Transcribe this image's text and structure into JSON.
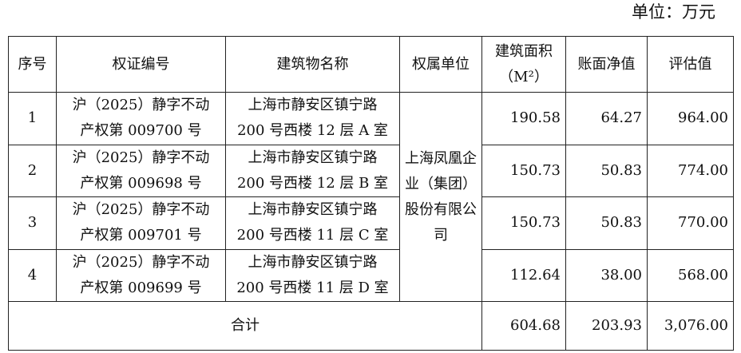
{
  "unit_label": "单位：万元",
  "headers": [
    "序号",
    "权证编号",
    "建筑物名称",
    "权属单位",
    "建筑面积（M²）",
    "账面净值",
    "评估值"
  ],
  "owner": "上海凤凰企业（集团）股份有限公司",
  "rows": [
    {
      "no": "1",
      "cert_l1": "沪（2025）静字不动",
      "cert_l2": "产权第 009700 号",
      "name_l1": "上海市静安区镇宁路",
      "name_l2": "200 号西楼 12 层 A 室",
      "area": "190.58",
      "book": "64.27",
      "value": "964.00"
    },
    {
      "no": "2",
      "cert_l1": "沪（2025）静字不动",
      "cert_l2": "产权第 009698 号",
      "name_l1": "上海市静安区镇宁路",
      "name_l2": "200 号西楼 12 层 B 室",
      "area": "150.73",
      "book": "50.83",
      "value": "774.00"
    },
    {
      "no": "3",
      "cert_l1": "沪（2025）静字不动",
      "cert_l2": "产权第 009701 号",
      "name_l1": "上海市静安区镇宁路",
      "name_l2": "200 号西楼 11 层 C 室",
      "area": "150.73",
      "book": "50.83",
      "value": "770.00"
    },
    {
      "no": "4",
      "cert_l1": "沪（2025）静字不动",
      "cert_l2": "产权第 009699 号",
      "name_l1": "上海市静安区镇宁路",
      "name_l2": "200 号西楼 11 层 D 室",
      "area": "112.64",
      "book": "38.00",
      "value": "568.00"
    }
  ],
  "total": {
    "label": "合计",
    "area": "604.68",
    "book": "203.93",
    "value": "3,076.00"
  }
}
